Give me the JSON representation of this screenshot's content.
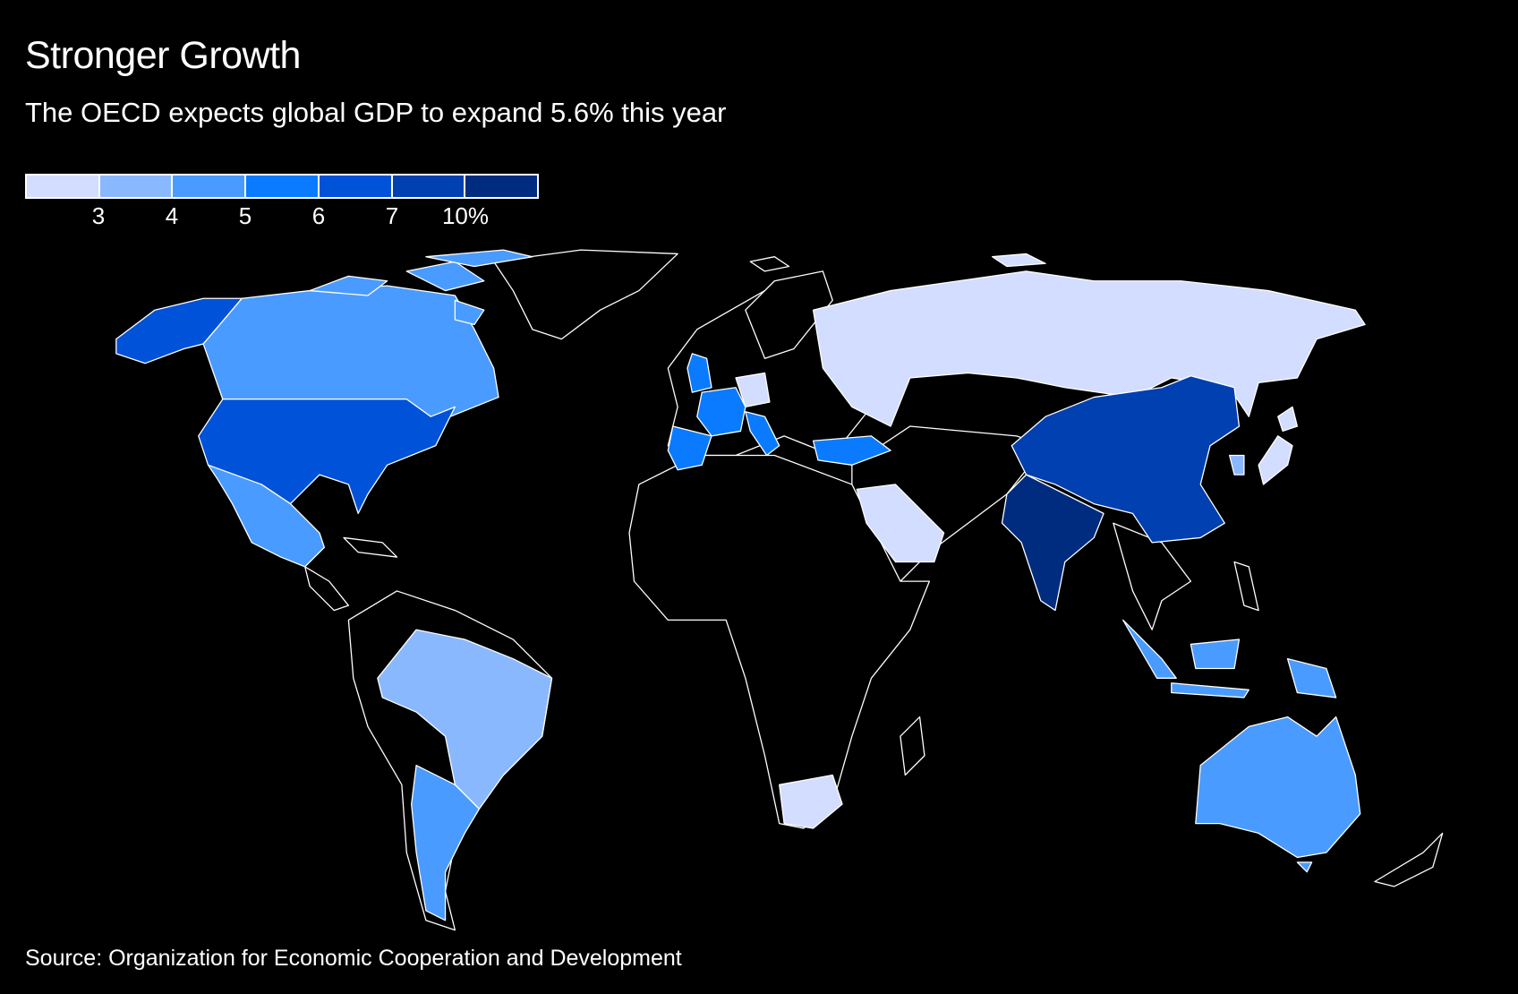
{
  "title": "Stronger Growth",
  "subtitle": "The OECD expects global GDP to expand 5.6% this year",
  "legend": {
    "colors": [
      "#d2ddff",
      "#8ab8ff",
      "#4a9bff",
      "#0a7bff",
      "#0052d9",
      "#0040b0",
      "#002c80"
    ],
    "labels": [
      "3",
      "4",
      "5",
      "6",
      "7",
      "10%"
    ]
  },
  "map_data": {
    "no_data_color": "#000000",
    "regions": [
      {
        "id": "alaska",
        "bin": 4
      },
      {
        "id": "canada",
        "bin": 2
      },
      {
        "id": "canada-arctic",
        "bin": 2
      },
      {
        "id": "usa",
        "bin": 4
      },
      {
        "id": "mexico",
        "bin": 2
      },
      {
        "id": "brazil",
        "bin": 1
      },
      {
        "id": "argentina",
        "bin": 2
      },
      {
        "id": "uk",
        "bin": 3
      },
      {
        "id": "france",
        "bin": 3
      },
      {
        "id": "spain",
        "bin": 3
      },
      {
        "id": "germany",
        "bin": 0
      },
      {
        "id": "italy",
        "bin": 3
      },
      {
        "id": "turkey",
        "bin": 3
      },
      {
        "id": "russia",
        "bin": 0
      },
      {
        "id": "saudi-arabia",
        "bin": 0
      },
      {
        "id": "south-africa",
        "bin": 0
      },
      {
        "id": "china",
        "bin": 5
      },
      {
        "id": "india",
        "bin": 6
      },
      {
        "id": "japan",
        "bin": 0
      },
      {
        "id": "south-korea",
        "bin": 1
      },
      {
        "id": "indonesia",
        "bin": 2
      },
      {
        "id": "australia",
        "bin": 2
      }
    ]
  },
  "source": "Source: Organization for Economic Cooperation and Development"
}
